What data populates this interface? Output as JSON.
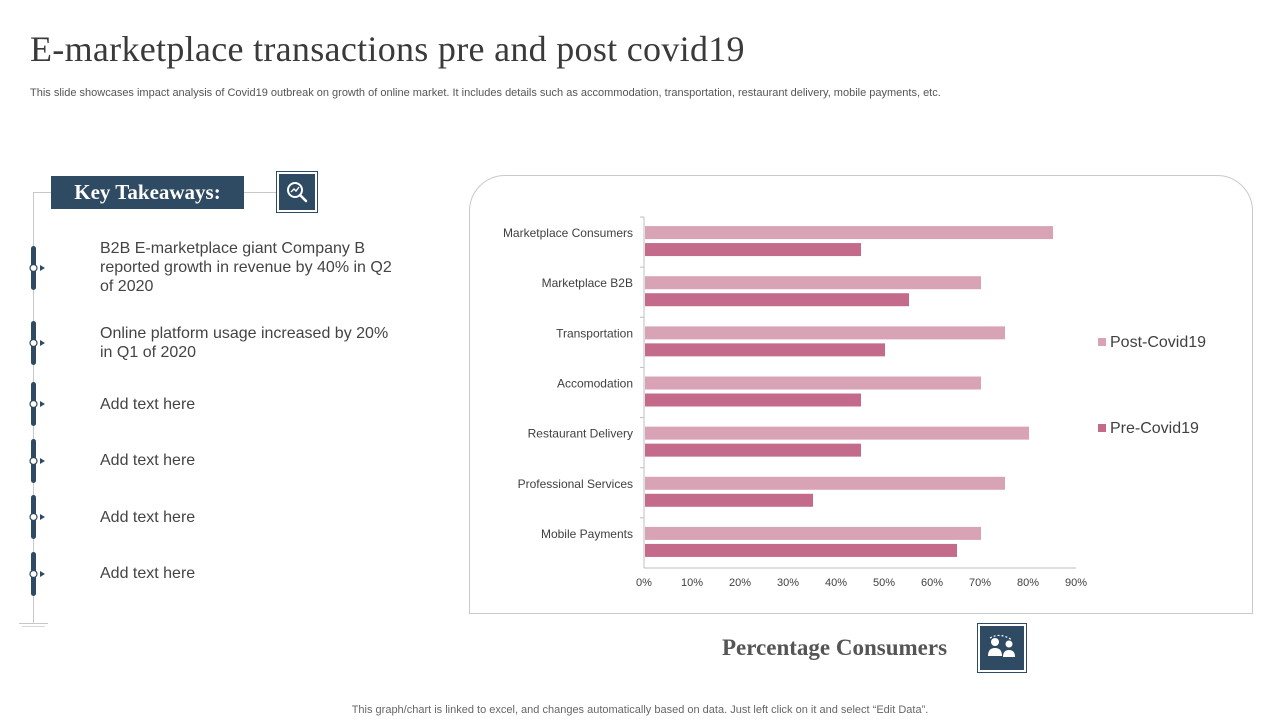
{
  "page": {
    "title": "E-marketplace transactions pre and post covid19",
    "subtitle": "This slide showcases impact analysis of Covid19 outbreak on growth of online market. It includes details such as accommodation, transportation, restaurant delivery, mobile payments, etc.",
    "footer": "This graph/chart is linked to excel,  and changes automatically based on data. Just left click on it and select “Edit Data”."
  },
  "takeaways": {
    "heading": "Key Takeaways:",
    "icon": "magnifier-chart-icon",
    "items": [
      "B2B E-marketplace giant Company B reported growth in revenue by 40% in Q2 of 2020",
      "Online platform usage increased by 20% in Q1 of 2020",
      "Add text here",
      "Add text here",
      "Add text here",
      "Add text here"
    ]
  },
  "caption": {
    "label": "Percentage Consumers",
    "icon": "consumers-icon"
  },
  "colors": {
    "navy": "#2f4a63",
    "post": "#d9a3b6",
    "pre": "#c46a8a"
  },
  "chart_data": {
    "type": "bar",
    "orientation": "horizontal",
    "categories": [
      "Marketplace Consumers",
      "Marketplace B2B",
      "Transportation",
      "Accomodation",
      "Restaurant Delivery",
      "Professional Services",
      "Mobile Payments"
    ],
    "series": [
      {
        "name": "Post-Covid19",
        "color": "#d9a3b6",
        "values": [
          0.85,
          0.7,
          0.75,
          0.7,
          0.8,
          0.75,
          0.7
        ]
      },
      {
        "name": "Pre-Covid19",
        "color": "#c46a8a",
        "values": [
          0.45,
          0.55,
          0.5,
          0.45,
          0.45,
          0.35,
          0.65
        ]
      }
    ],
    "xlim": [
      0,
      0.9
    ],
    "xticks": [
      "0%",
      "10%",
      "20%",
      "30%",
      "40%",
      "50%",
      "60%",
      "70%",
      "80%",
      "90%"
    ],
    "legend": "right",
    "grid": false
  }
}
